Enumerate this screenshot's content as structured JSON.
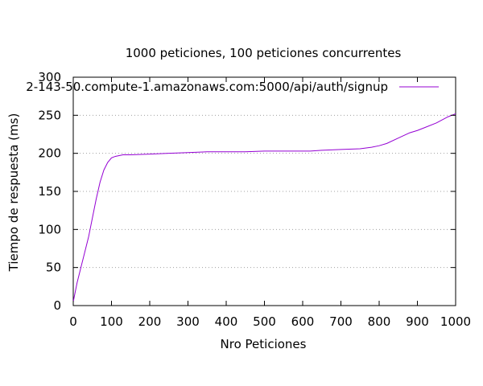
{
  "chart_data": {
    "type": "line",
    "title": "1000 peticiones, 100 peticiones concurrentes",
    "xlabel": "Nro Peticiones",
    "ylabel": "Tiempo de respuesta (ms)",
    "xlim": [
      0,
      1000
    ],
    "ylim": [
      0,
      300
    ],
    "xticks": [
      0,
      100,
      200,
      300,
      400,
      500,
      600,
      700,
      800,
      900,
      1000
    ],
    "yticks": [
      0,
      50,
      100,
      150,
      200,
      250,
      300
    ],
    "grid": "horizontal dotted",
    "legend_position": "top-right",
    "series": [
      {
        "name": "2-143-50.compute-1.amazonaws.com:5000/api/auth/signup",
        "color": "#9400d3",
        "x": [
          0,
          10,
          20,
          30,
          40,
          50,
          60,
          70,
          80,
          90,
          100,
          110,
          120,
          130,
          150,
          200,
          250,
          300,
          350,
          400,
          450,
          500,
          550,
          600,
          620,
          650,
          700,
          750,
          780,
          800,
          820,
          850,
          880,
          900,
          920,
          950,
          980,
          1000
        ],
        "values": [
          5,
          30,
          50,
          70,
          90,
          115,
          140,
          162,
          178,
          188,
          194,
          196,
          197,
          198,
          198,
          199,
          200,
          201,
          202,
          202,
          202,
          203,
          203,
          203,
          203,
          204,
          205,
          206,
          208,
          210,
          213,
          220,
          227,
          230,
          234,
          240,
          248,
          252
        ]
      }
    ]
  }
}
